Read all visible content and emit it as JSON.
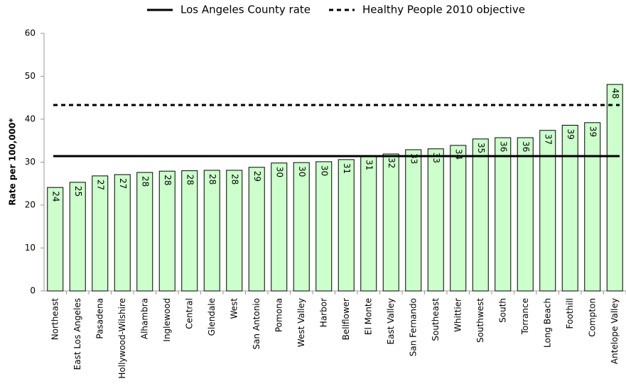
{
  "chart_data": {
    "type": "bar",
    "ylabel": "Rate per 100,000*",
    "categories": [
      "Northeast",
      "East Los Angeles",
      "Pasadena",
      "Hollywood-Wilshire",
      "Alhambra",
      "Inglewood",
      "Central",
      "Glendale",
      "West",
      "San Antonio",
      "Pomona",
      "West Valley",
      "Harbor",
      "Bellflower",
      "El Monte",
      "East Valley",
      "San Fernando",
      "Southeast",
      "Whittier",
      "Southwest",
      "South",
      "Torrance",
      "Long Beach",
      "Foothill",
      "Compton",
      "Antelope Valley"
    ],
    "values": [
      24.1,
      25.3,
      26.8,
      27.1,
      27.6,
      27.9,
      28.0,
      28.1,
      28.1,
      28.8,
      29.8,
      29.9,
      30.1,
      30.6,
      31.4,
      31.9,
      32.9,
      33.1,
      33.9,
      35.4,
      35.7,
      35.7,
      37.4,
      38.6,
      39.2,
      48.1
    ],
    "value_labels": [
      "24",
      "25",
      "27",
      "27",
      "28",
      "28",
      "28",
      "28",
      "28",
      "29",
      "30",
      "30",
      "30",
      "31",
      "31",
      "32",
      "33",
      "33",
      "34",
      "35",
      "36",
      "36",
      "37",
      "39",
      "39",
      "48"
    ],
    "color": "#ccffcc",
    "reference_lines": [
      {
        "name": "Los Angeles County rate",
        "value": 31.4,
        "style": "solid"
      },
      {
        "name": "Healthy People 2010 objective",
        "value": 43.3,
        "style": "dashed"
      }
    ],
    "ylim": [
      0,
      60
    ],
    "yticks": [
      0,
      10,
      20,
      30,
      40,
      50,
      60
    ]
  }
}
